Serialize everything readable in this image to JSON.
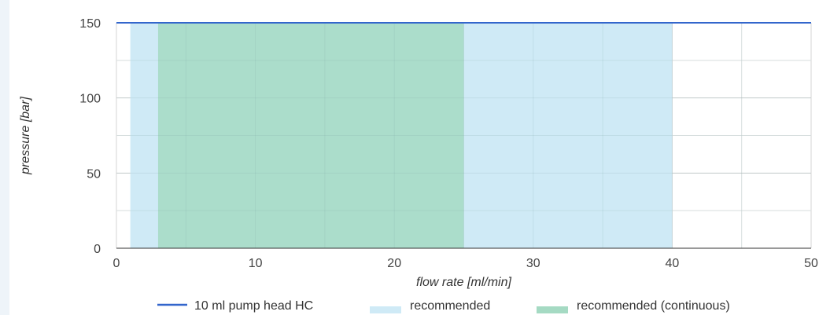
{
  "chart_data": {
    "type": "area",
    "title": "",
    "xlabel": "flow rate [ml/min]",
    "ylabel": "pressure [bar]",
    "xlim": [
      0,
      50
    ],
    "ylim": [
      0,
      150
    ],
    "x_ticks": [
      "0",
      "10",
      "20",
      "30",
      "40",
      "50"
    ],
    "y_ticks": [
      "0",
      "50",
      "100",
      "150"
    ],
    "grid": true,
    "legend_position": "bottom",
    "series": [
      {
        "name": "10 ml pump head HC",
        "kind": "line",
        "color": "#3366cc",
        "x": [
          0,
          50
        ],
        "y": [
          150,
          150
        ]
      },
      {
        "name": "recommended",
        "kind": "range",
        "color": "#cfeaf6",
        "x_start": 1,
        "x_end": 40,
        "y": 150
      },
      {
        "name": "recommended (continuous)",
        "kind": "range",
        "color": "#a5dac3",
        "x_start": 3,
        "x_end": 25,
        "y": 150
      }
    ]
  }
}
